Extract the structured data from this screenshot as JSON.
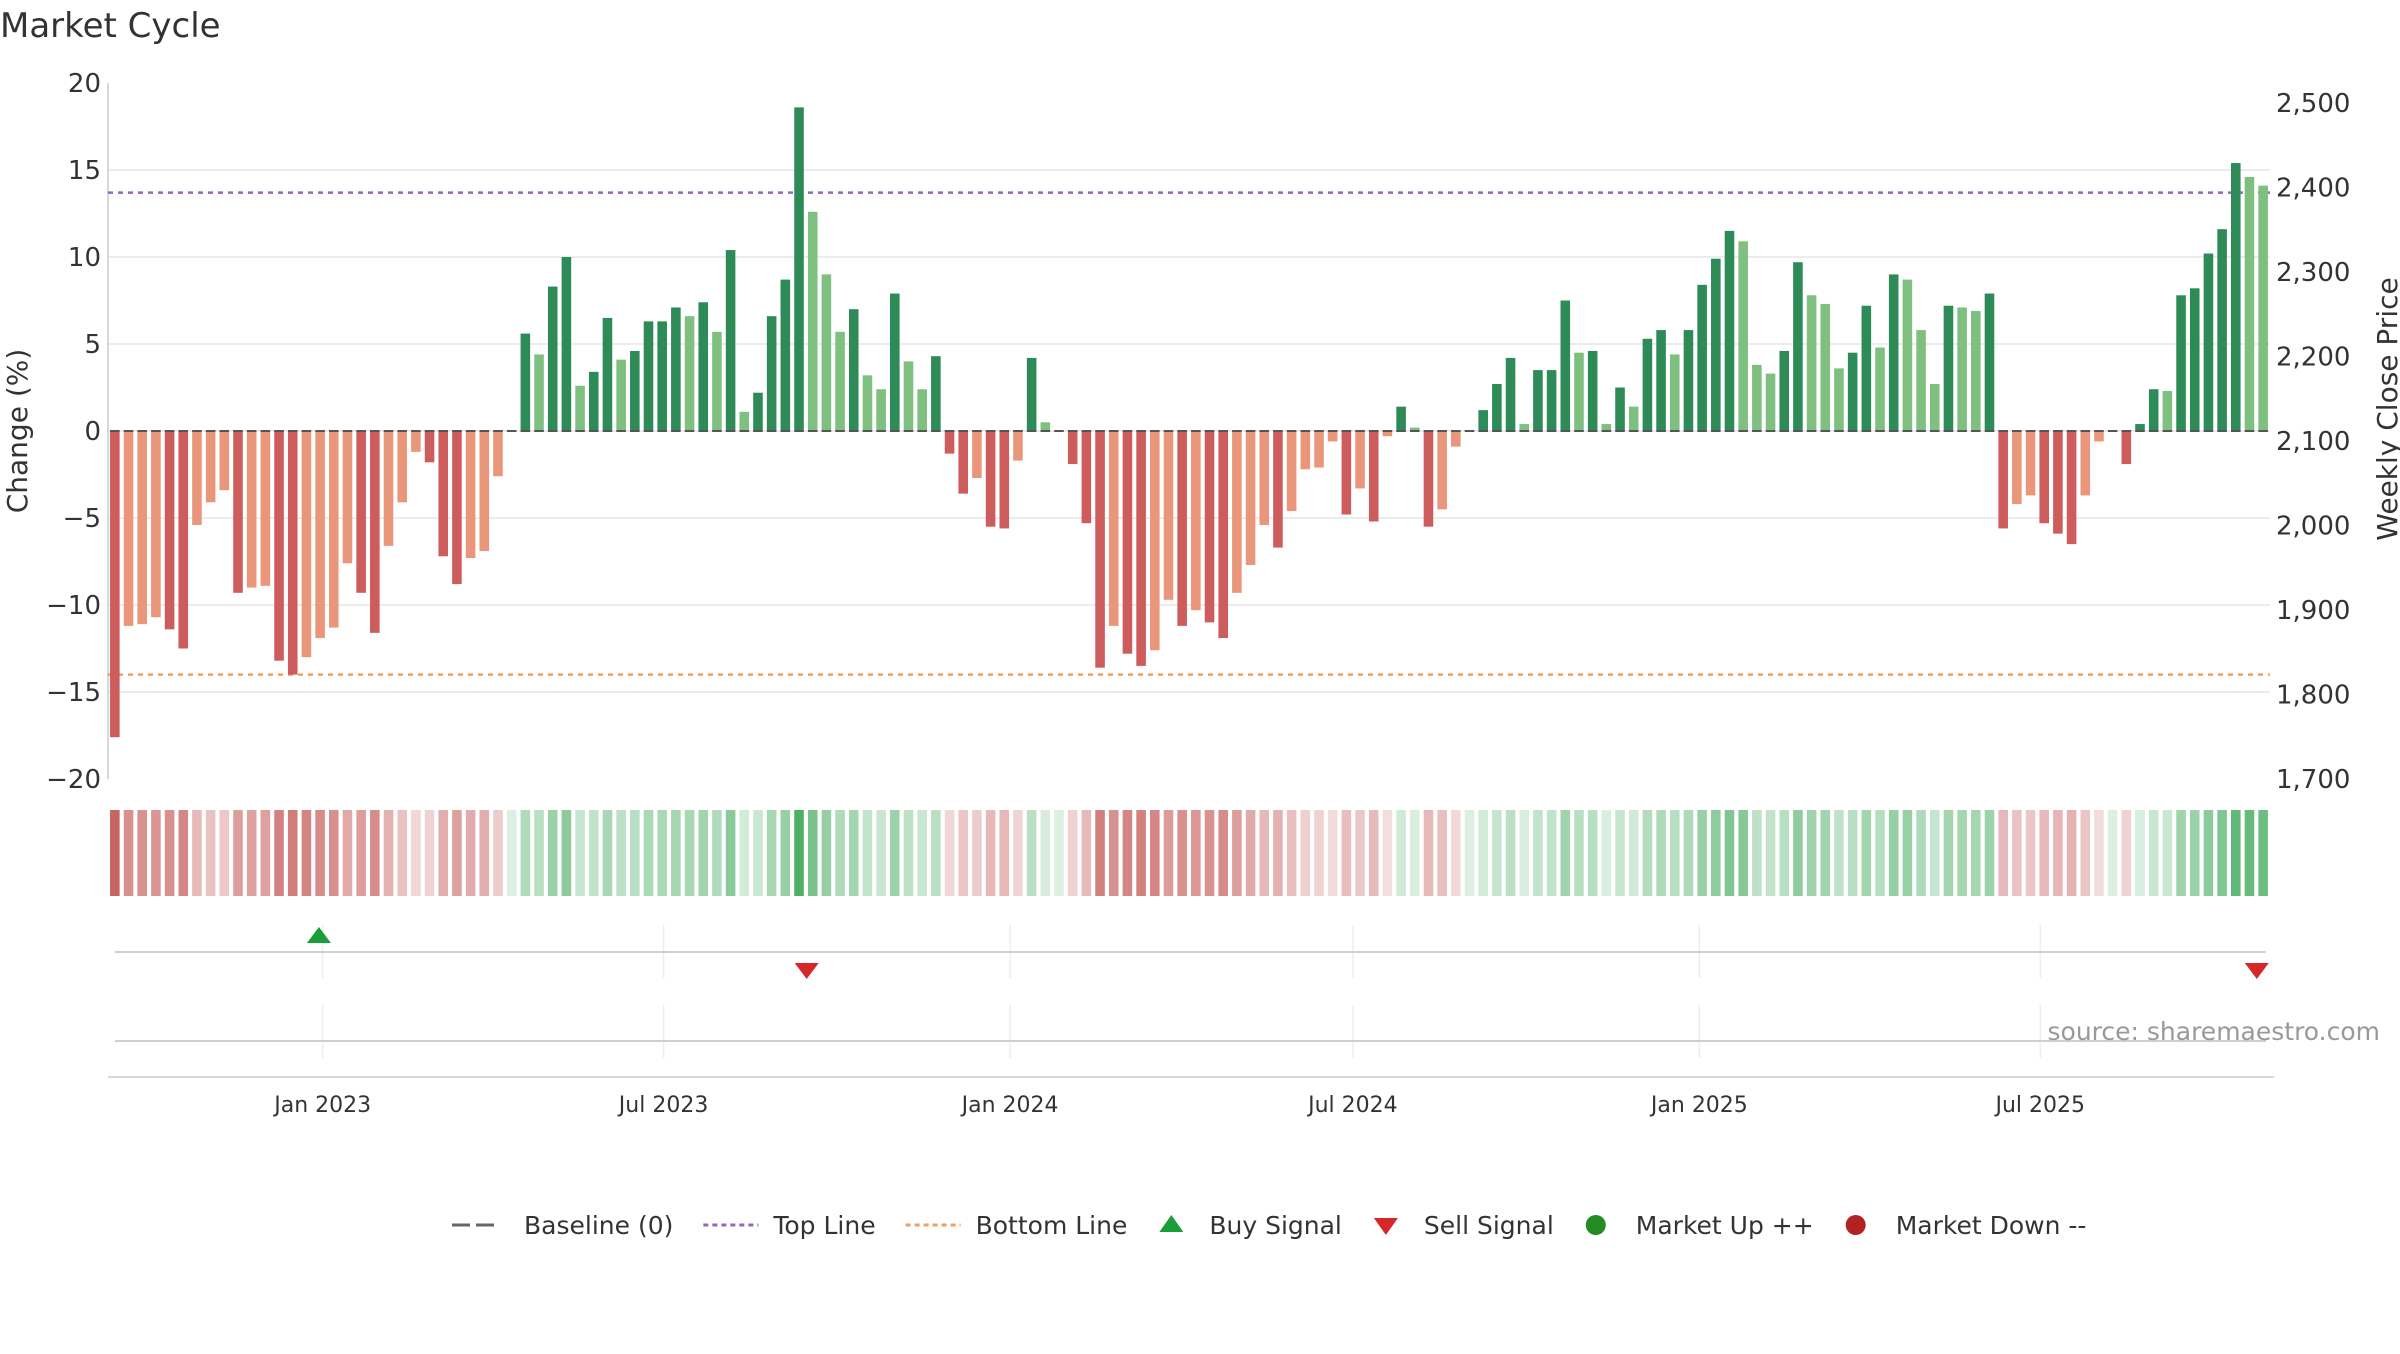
{
  "chart_data": {
    "type": "bar",
    "title": "Market Cycle",
    "ylabel": "Change (%)",
    "y2label": "Weekly Close Price",
    "ylim": [
      -20,
      20
    ],
    "y2lim": [
      1700,
      2500
    ],
    "yticks": [
      20,
      15,
      10,
      5,
      0,
      -5,
      -10,
      -15,
      -20
    ],
    "y2ticks": [
      2500,
      2400,
      2300,
      2200,
      2100,
      2000,
      1900,
      1800,
      1700
    ],
    "y2tick_labels": [
      "2,500",
      "2,400",
      "2,300",
      "2,200",
      "2,100",
      "2,000",
      "1,900",
      "1,800",
      "1,700"
    ],
    "ytick_labels": [
      "20",
      "15",
      "10",
      "5",
      "0",
      "−5",
      "−10",
      "−15",
      "−20"
    ],
    "x_start": "2022-09-09",
    "x_end": "2025-10-31",
    "xticks": [
      {
        "date": "2023-01-01",
        "label": "Jan 2023"
      },
      {
        "date": "2023-07-01",
        "label": "Jul 2023"
      },
      {
        "date": "2024-01-01",
        "label": "Jan 2024"
      },
      {
        "date": "2024-07-01",
        "label": "Jul 2024"
      },
      {
        "date": "2025-01-01",
        "label": "Jan 2025"
      },
      {
        "date": "2025-07-01",
        "label": "Jul 2025"
      }
    ],
    "top_line": 13.7,
    "bottom_line": -14.0,
    "values": [
      -17.6,
      -11.2,
      -11.1,
      -10.7,
      -11.4,
      -12.5,
      -5.4,
      -4.1,
      -3.4,
      -9.3,
      -9.0,
      -8.9,
      -13.2,
      -14.0,
      -13.0,
      -11.9,
      -11.3,
      -7.6,
      -9.3,
      -11.6,
      -6.6,
      -4.1,
      -1.2,
      -1.8,
      -7.2,
      -8.8,
      -7.3,
      -6.9,
      -2.6,
      0.0,
      5.6,
      4.4,
      8.3,
      10.0,
      2.6,
      3.4,
      6.5,
      4.1,
      4.6,
      6.3,
      6.3,
      7.1,
      6.6,
      7.4,
      5.7,
      10.4,
      1.1,
      2.2,
      6.6,
      8.7,
      18.6,
      12.6,
      9.0,
      5.7,
      7.0,
      3.2,
      2.4,
      7.9,
      4.0,
      2.4,
      4.3,
      -1.3,
      -3.6,
      -2.7,
      -5.5,
      -5.6,
      -1.7,
      4.2,
      0.5,
      0.0,
      -1.9,
      -5.3,
      -13.6,
      -11.2,
      -12.8,
      -13.5,
      -12.6,
      -9.7,
      -11.2,
      -10.3,
      -11.0,
      -11.9,
      -9.3,
      -7.7,
      -5.4,
      -6.7,
      -4.6,
      -2.2,
      -2.1,
      -0.6,
      -4.8,
      -3.3,
      -5.2,
      -0.3,
      1.4,
      0.2,
      -5.5,
      -4.5,
      -0.9,
      0.0,
      1.2,
      2.7,
      4.2,
      0.4,
      3.5,
      3.5,
      7.5,
      4.5,
      4.6,
      0.4,
      2.5,
      1.4,
      5.3,
      5.8,
      4.4,
      5.8,
      8.4,
      9.9,
      11.5,
      10.9,
      3.8,
      3.3,
      4.6,
      9.7,
      7.8,
      7.3,
      3.6,
      4.5,
      7.2,
      4.8,
      9.0,
      8.7,
      5.8,
      2.7,
      7.2,
      7.1,
      6.9,
      7.9,
      -5.6,
      -4.2,
      -3.7,
      -5.3,
      -5.9,
      -6.5,
      -3.7,
      -0.6,
      0.0,
      -1.9,
      0.4,
      2.4,
      2.3,
      7.8,
      8.2,
      10.2,
      11.6,
      15.4,
      14.6,
      14.1
    ],
    "signals": [
      {
        "type": "buy",
        "date": "2022-12-30"
      },
      {
        "type": "sell",
        "date": "2023-09-15"
      },
      {
        "type": "sell",
        "date": "2025-10-24"
      }
    ],
    "source": "source: sharemaestro.com",
    "colors": {
      "strong_up": "#2e8b57",
      "up": "#7fbf7f",
      "strong_down": "#cd5c5c",
      "down": "#e9967a",
      "top_line": "#9467bd",
      "bottom_line": "#f0a060",
      "buy": "#1a9e3a",
      "sell": "#d62728",
      "market_up": "#228b22",
      "market_down": "#b22222"
    },
    "legend_position": "bottom-center",
    "legend": [
      {
        "key": "baseline",
        "label": "Baseline (0)"
      },
      {
        "key": "top",
        "label": "Top Line"
      },
      {
        "key": "bottom",
        "label": "Bottom Line"
      },
      {
        "key": "buy",
        "label": "Buy Signal"
      },
      {
        "key": "sell",
        "label": "Sell Signal"
      },
      {
        "key": "mup",
        "label": "Market Up ++"
      },
      {
        "key": "mdown",
        "label": "Market Down --"
      }
    ]
  }
}
